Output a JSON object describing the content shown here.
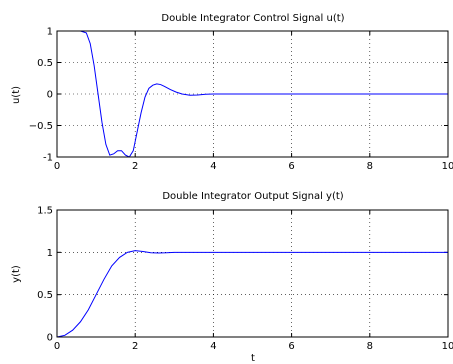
{
  "chart_data": [
    {
      "type": "line",
      "title": "Double Integrator Control Signal u(t)",
      "xlabel": "",
      "ylabel": "u(t)",
      "xlim": [
        0,
        10
      ],
      "ylim": [
        -1,
        1
      ],
      "xticks": [
        "0",
        "2",
        "4",
        "6",
        "8",
        "10"
      ],
      "yticks": [
        "-1",
        "−0.5",
        "0",
        "0.5",
        "1"
      ],
      "ytick_values": [
        -1,
        -0.5,
        0,
        0.5,
        1
      ],
      "grid": true,
      "line_color": "#0000ff",
      "x": [
        0,
        0.3,
        0.6,
        0.75,
        0.85,
        0.95,
        1.05,
        1.15,
        1.25,
        1.35,
        1.45,
        1.55,
        1.65,
        1.75,
        1.85,
        1.95,
        2.05,
        2.15,
        2.25,
        2.35,
        2.45,
        2.55,
        2.65,
        2.75,
        2.9,
        3.05,
        3.2,
        3.4,
        3.6,
        3.8,
        4.0,
        4.5,
        5,
        6,
        7,
        8,
        9,
        10
      ],
      "y": [
        1,
        1,
        1,
        0.97,
        0.8,
        0.45,
        0.0,
        -0.45,
        -0.8,
        -0.97,
        -0.95,
        -0.9,
        -0.9,
        -0.97,
        -1.0,
        -0.9,
        -0.6,
        -0.3,
        -0.05,
        0.09,
        0.14,
        0.16,
        0.15,
        0.12,
        0.07,
        0.03,
        0.0,
        -0.02,
        -0.015,
        -0.005,
        0.0,
        0.0,
        0.0,
        0.0,
        0.0,
        0.0,
        0.0,
        0.0
      ]
    },
    {
      "type": "line",
      "title": "Double Integrator Output Signal y(t)",
      "xlabel": "t",
      "ylabel": "y(t)",
      "xlim": [
        0,
        10
      ],
      "ylim": [
        0,
        1.5
      ],
      "xticks": [
        "0",
        "2",
        "4",
        "6",
        "8",
        "10"
      ],
      "yticks": [
        "0",
        "0.5",
        "1",
        "1.5"
      ],
      "ytick_values": [
        0,
        0.5,
        1,
        1.5
      ],
      "grid": true,
      "line_color": "#0000ff",
      "x": [
        0,
        0.2,
        0.4,
        0.6,
        0.8,
        1.0,
        1.2,
        1.4,
        1.6,
        1.8,
        2.0,
        2.2,
        2.4,
        2.6,
        2.8,
        3.0,
        3.5,
        4,
        5,
        6,
        7,
        8,
        9,
        10
      ],
      "y": [
        0,
        0.02,
        0.08,
        0.18,
        0.32,
        0.5,
        0.68,
        0.84,
        0.94,
        1.0,
        1.02,
        1.01,
        0.995,
        0.992,
        0.995,
        1.0,
        1.0,
        1.0,
        1.0,
        1.0,
        1.0,
        1.0,
        1.0,
        1.0
      ]
    }
  ]
}
